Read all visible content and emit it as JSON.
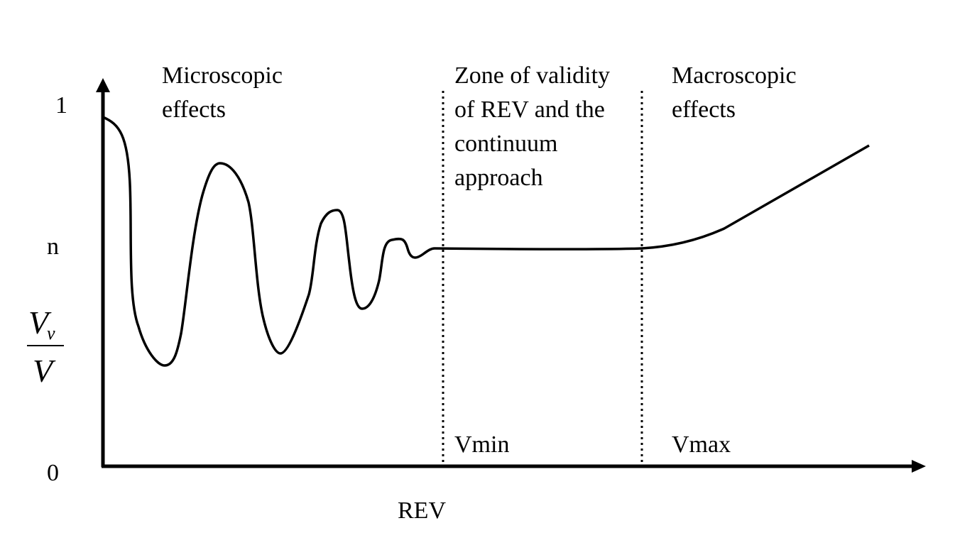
{
  "colors": {
    "ink": "#000000",
    "background": "#ffffff"
  },
  "axes": {
    "y_top_tick": "1",
    "y_mid_tick": "n",
    "y_bottom_tick": "0",
    "x_label": "REV",
    "y_label_numerator": "V",
    "y_label_subscript": "v",
    "y_label_denominator": "V"
  },
  "zones": {
    "microscopic": [
      "Microscopic",
      "effects"
    ],
    "rev_validity": [
      "Zone of validity",
      "of REV and the",
      "continuum",
      "approach"
    ],
    "macroscopic": [
      "Macroscopic",
      "effects"
    ]
  },
  "boundaries": {
    "left_label": "Vmin",
    "right_label": "Vmax"
  }
}
